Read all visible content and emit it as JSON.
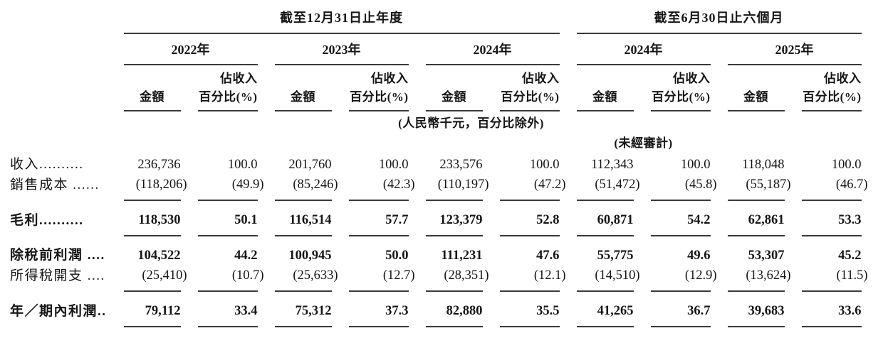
{
  "header": {
    "group1": {
      "title": "截至12月31日止年度",
      "years": [
        "2022年",
        "2023年",
        "2024年"
      ]
    },
    "group2": {
      "title": "截至6月30日止六個月",
      "years": [
        "2024年",
        "2025年"
      ]
    },
    "amount_label": "金額",
    "pct_label_line1": "佔收入",
    "pct_label_line2": "百分比(%)",
    "unit_note": "(人民幣千元，百分比除外)",
    "unaudited_note": "(未經審計)"
  },
  "table": {
    "rows": [
      {
        "name": "revenue",
        "label": "收入..........",
        "bold": false,
        "rule_below": false,
        "values": [
          "236,736",
          "100.0",
          "201,760",
          "100.0",
          "233,576",
          "100.0",
          "112,343",
          "100.0",
          "118,048",
          "100.0"
        ]
      },
      {
        "name": "cost-of-sales",
        "label": "銷售成本 ......",
        "bold": false,
        "rule_below": true,
        "values": [
          "(118,206)",
          "(49.9)",
          "(85,246)",
          "(42.3)",
          "(110,197)",
          "(47.2)",
          "(51,472)",
          "(45.8)",
          "(55,187)",
          "(46.7)"
        ]
      },
      {
        "name": "gross-profit",
        "label": "毛利..........",
        "bold": true,
        "rule_below": true,
        "values": [
          "118,530",
          "50.1",
          "116,514",
          "57.7",
          "123,379",
          "52.8",
          "60,871",
          "54.2",
          "62,861",
          "53.3"
        ]
      },
      {
        "name": "profit-before-tax",
        "label": "除稅前利潤 ....",
        "bold": true,
        "rule_below": false,
        "values": [
          "104,522",
          "44.2",
          "100,945",
          "50.0",
          "111,231",
          "47.6",
          "55,775",
          "49.6",
          "53,307",
          "45.2"
        ]
      },
      {
        "name": "income-tax-expense",
        "label": "所得稅開支 ....",
        "bold": false,
        "rule_below": true,
        "values": [
          "(25,410)",
          "(10.7)",
          "(25,633)",
          "(12.7)",
          "(28,351)",
          "(12.1)",
          "(14,510)",
          "(12.9)",
          "(13,624)",
          "(11.5)"
        ]
      },
      {
        "name": "profit-for-period",
        "label": "年／期內利潤..",
        "bold": true,
        "rule_below": true,
        "values": [
          "79,112",
          "33.4",
          "75,312",
          "37.3",
          "82,880",
          "35.5",
          "41,265",
          "36.7",
          "39,683",
          "33.6"
        ]
      }
    ]
  },
  "colors": {
    "text": "#151515",
    "rule": "#3a3a3a",
    "background": "#ffffff"
  }
}
